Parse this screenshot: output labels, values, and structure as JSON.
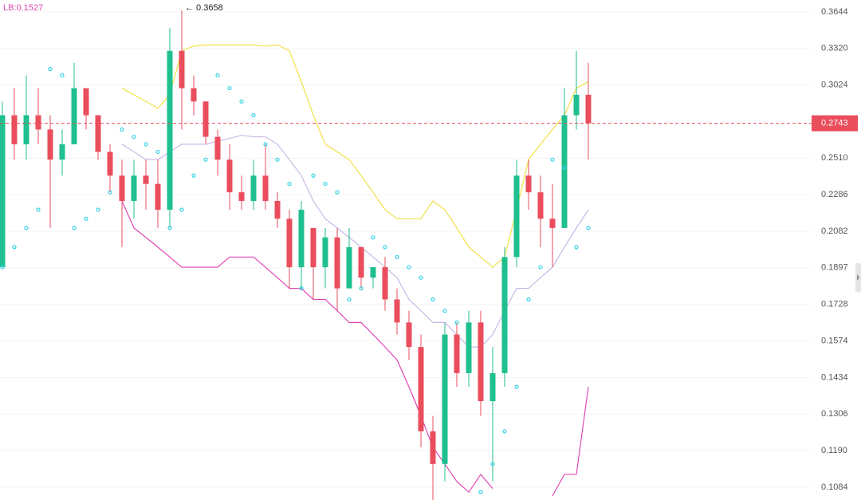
{
  "chart_data": {
    "type": "candlestick",
    "label": "LB:0.1527",
    "annotation": "← 0.3658",
    "log_scale": true,
    "grid": true,
    "up_color": "#1fbf8f",
    "down_color": "#ea4d5c",
    "ylim": [
      0.1049,
      0.3757
    ],
    "yticks": [
      {
        "value": 0.3644,
        "label": "0.3644"
      },
      {
        "value": 0.332,
        "label": "0.3320"
      },
      {
        "value": 0.3024,
        "label": "0.3024"
      },
      {
        "value": 0.251,
        "label": "0.2510"
      },
      {
        "value": 0.2286,
        "label": "0.2286"
      },
      {
        "value": 0.2082,
        "label": "0.2082"
      },
      {
        "value": 0.1897,
        "label": "0.1897"
      },
      {
        "value": 0.1728,
        "label": "0.1728"
      },
      {
        "value": 0.1574,
        "label": "0.1574"
      },
      {
        "value": 0.1434,
        "label": "0.1434"
      },
      {
        "value": 0.1306,
        "label": "0.1306"
      },
      {
        "value": 0.119,
        "label": "0.1190"
      },
      {
        "value": 0.1084,
        "label": "0.1084"
      }
    ],
    "last_price": {
      "value": 0.2743,
      "label": "0.2743",
      "color": "#ea4d5c"
    },
    "candles": {
      "open": [
        0.19,
        0.28,
        0.26,
        0.28,
        0.27,
        0.25,
        0.26,
        0.3,
        0.28,
        0.255,
        0.24,
        0.225,
        0.24,
        0.235,
        0.22,
        0.33,
        0.3,
        0.29,
        0.265,
        0.25,
        0.23,
        0.225,
        0.24,
        0.225,
        0.215,
        0.19,
        0.21,
        0.19,
        0.205,
        0.18,
        0.2,
        0.185,
        0.19,
        0.175,
        0.165,
        0.155,
        0.125,
        0.115,
        0.16,
        0.145,
        0.165,
        0.135,
        0.145,
        0.195,
        0.24,
        0.23,
        0.215,
        0.21,
        0.28,
        0.295
      ],
      "high": [
        0.29,
        0.3,
        0.31,
        0.3,
        0.28,
        0.27,
        0.32,
        0.3,
        0.28,
        0.26,
        0.25,
        0.25,
        0.25,
        0.25,
        0.35,
        0.3658,
        0.31,
        0.29,
        0.27,
        0.26,
        0.24,
        0.25,
        0.26,
        0.23,
        0.22,
        0.225,
        0.21,
        0.21,
        0.21,
        0.21,
        0.2,
        0.19,
        0.195,
        0.18,
        0.17,
        0.16,
        0.13,
        0.165,
        0.165,
        0.17,
        0.17,
        0.155,
        0.2,
        0.25,
        0.25,
        0.24,
        0.235,
        0.3,
        0.33,
        0.32
      ],
      "low": [
        0.19,
        0.25,
        0.25,
        0.26,
        0.21,
        0.24,
        0.26,
        0.27,
        0.25,
        0.23,
        0.2,
        0.215,
        0.22,
        0.21,
        0.21,
        0.27,
        0.28,
        0.26,
        0.24,
        0.22,
        0.22,
        0.22,
        0.22,
        0.21,
        0.18,
        0.18,
        0.175,
        0.18,
        0.17,
        0.18,
        0.18,
        0.18,
        0.17,
        0.16,
        0.15,
        0.12,
        0.104,
        0.11,
        0.14,
        0.14,
        0.13,
        0.11,
        0.14,
        0.19,
        0.22,
        0.2,
        0.19,
        0.21,
        0.27,
        0.25
      ],
      "close": [
        0.28,
        0.26,
        0.28,
        0.27,
        0.25,
        0.26,
        0.3,
        0.28,
        0.255,
        0.24,
        0.225,
        0.24,
        0.235,
        0.22,
        0.33,
        0.3,
        0.29,
        0.265,
        0.25,
        0.23,
        0.225,
        0.24,
        0.225,
        0.215,
        0.19,
        0.22,
        0.19,
        0.205,
        0.18,
        0.2,
        0.185,
        0.19,
        0.175,
        0.165,
        0.155,
        0.125,
        0.115,
        0.16,
        0.145,
        0.165,
        0.135,
        0.145,
        0.195,
        0.24,
        0.23,
        0.215,
        0.21,
        0.28,
        0.295,
        0.2743
      ]
    },
    "lines": [
      {
        "color": "#f2e14a",
        "values": [
          null,
          null,
          null,
          null,
          null,
          null,
          null,
          null,
          null,
          null,
          0.3,
          0.295,
          0.29,
          0.285,
          0.295,
          0.33,
          0.334,
          0.335,
          0.335,
          0.335,
          0.335,
          0.335,
          0.334,
          0.335,
          0.33,
          0.305,
          0.28,
          0.26,
          0.255,
          0.25,
          0.24,
          0.23,
          0.22,
          0.215,
          0.215,
          0.215,
          0.225,
          0.22,
          0.21,
          0.2,
          0.195,
          0.19,
          0.195,
          0.22,
          0.25,
          0.26,
          0.27,
          0.28,
          0.3,
          0.305
        ]
      },
      {
        "color": "#c9b8e6",
        "values": [
          null,
          null,
          null,
          null,
          null,
          null,
          null,
          null,
          null,
          null,
          0.26,
          0.255,
          0.25,
          0.25,
          0.255,
          0.26,
          0.26,
          0.26,
          0.262,
          0.264,
          0.266,
          0.265,
          0.265,
          0.26,
          0.25,
          0.24,
          0.225,
          0.215,
          0.21,
          0.205,
          0.2,
          0.195,
          0.19,
          0.185,
          0.175,
          0.17,
          0.165,
          0.165,
          0.16,
          0.155,
          0.155,
          0.16,
          0.17,
          0.18,
          0.18,
          0.185,
          0.19,
          0.2,
          0.21,
          0.22
        ]
      },
      {
        "color": "#e048b4",
        "values": [
          null,
          null,
          null,
          null,
          null,
          null,
          null,
          null,
          null,
          null,
          0.225,
          0.21,
          0.205,
          0.2,
          0.195,
          0.19,
          0.19,
          0.19,
          0.19,
          0.195,
          0.195,
          0.195,
          0.19,
          0.185,
          0.18,
          0.18,
          0.175,
          0.175,
          0.17,
          0.165,
          0.165,
          0.16,
          0.155,
          0.15,
          0.14,
          0.13,
          0.12,
          0.115,
          0.11,
          0.107,
          0.112,
          0.108,
          null,
          null,
          null,
          null,
          0.106,
          0.112,
          0.112,
          0.14
        ]
      }
    ],
    "sar": {
      "color": "#36d3e6",
      "values": [
        0.19,
        0.2,
        0.21,
        0.22,
        0.315,
        0.31,
        0.21,
        0.215,
        0.22,
        0.23,
        0.27,
        0.265,
        0.26,
        0.255,
        0.21,
        0.22,
        0.24,
        0.25,
        0.31,
        0.3,
        0.29,
        0.28,
        0.26,
        0.25,
        0.235,
        0.18,
        0.24,
        0.235,
        0.23,
        0.175,
        0.18,
        0.205,
        0.2,
        0.195,
        0.19,
        0.185,
        0.175,
        0.17,
        0.165,
        null,
        0.107,
        0.115,
        0.125,
        0.14,
        0.175,
        0.19,
        0.25,
        0.245,
        0.2,
        0.21
      ]
    }
  }
}
